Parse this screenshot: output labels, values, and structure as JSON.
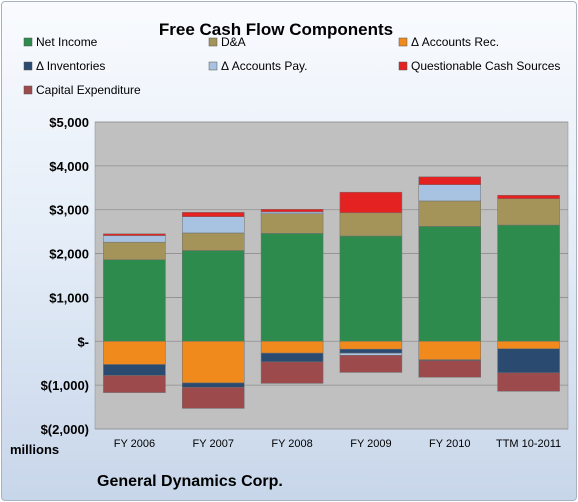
{
  "chart_data": {
    "type": "bar",
    "stacked": true,
    "title": "Free Cash Flow Components",
    "ylabel": "millions",
    "company": "General Dynamics Corp.",
    "categories": [
      "FY 2006",
      "FY 2007",
      "FY 2008",
      "FY 2009",
      "FY 2010",
      "TTM 10-2011"
    ],
    "yticks": [
      "$(2,000)",
      "$(1,000)",
      "$-",
      "$1,000",
      "$2,000",
      "$3,000",
      "$4,000",
      "$5,000"
    ],
    "ylim": [
      -2000,
      5000
    ],
    "grid": true,
    "legend_position": "top",
    "series": [
      {
        "name": "Net Income",
        "color": "#2e8b4e",
        "values": [
          1860,
          2070,
          2460,
          2400,
          2620,
          2650
        ]
      },
      {
        "name": "D&A",
        "color": "#a4945a",
        "values": [
          400,
          400,
          450,
          530,
          580,
          600
        ]
      },
      {
        "name": "Δ Accounts Rec.",
        "color": "#f08a1c",
        "values": [
          -530,
          -950,
          -270,
          -180,
          -420,
          -170
        ]
      },
      {
        "name": "Δ Inventories",
        "color": "#2b4a6f",
        "values": [
          -250,
          -100,
          -200,
          -90,
          -20,
          -550
        ]
      },
      {
        "name": "Δ Accounts Pay.",
        "color": "#a8c2e2",
        "values": [
          150,
          370,
          40,
          -50,
          370,
          0
        ]
      },
      {
        "name": "Questionable Cash Sources",
        "color": "#e52222",
        "values": [
          40,
          100,
          60,
          470,
          180,
          80
        ]
      },
      {
        "name": "Capital Expenditure",
        "color": "#9c4a4c",
        "values": [
          -390,
          -480,
          -490,
          -390,
          -380,
          -420
        ]
      }
    ]
  }
}
